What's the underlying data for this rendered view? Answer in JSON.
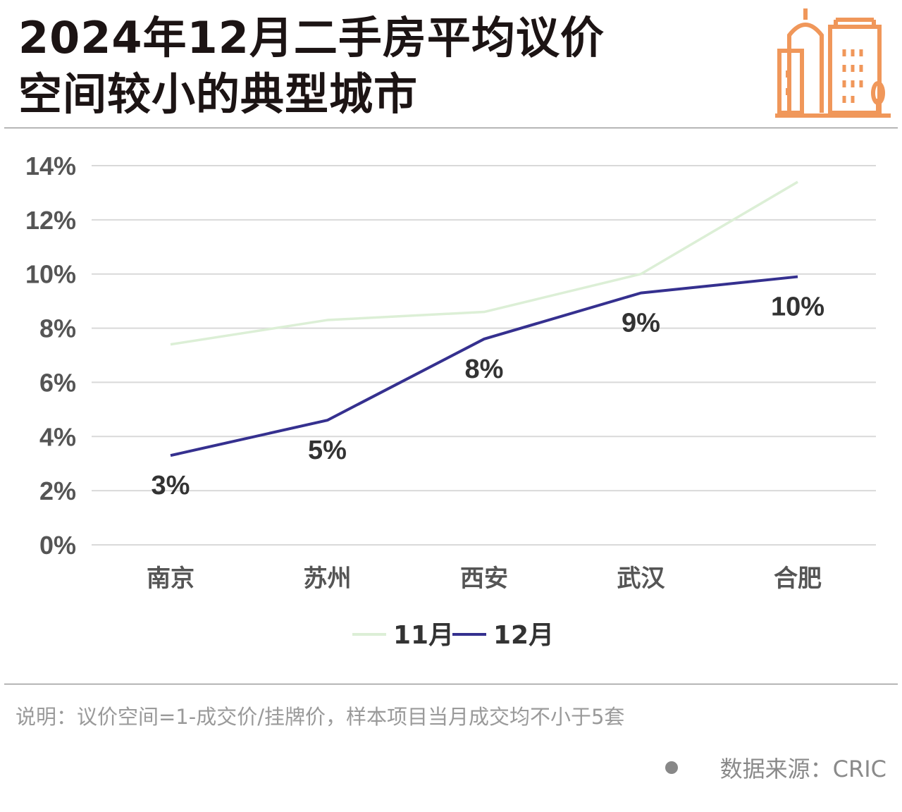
{
  "title_line1": "2024年12月二手房平均议价",
  "title_line2": "空间较小的典型城市",
  "note": "说明：议价空间=1-成交价/挂牌价，样本项目当月成交均不小于5套",
  "source": "数据来源：CRIC",
  "colors": {
    "nov": "#dcefd6",
    "dec": "#35308f",
    "logo": "#f0975a",
    "grid": "#d9d9d9"
  },
  "chart_data": {
    "type": "line",
    "title": "2024年12月二手房平均议价空间较小的典型城市",
    "categories": [
      "南京",
      "苏州",
      "西安",
      "武汉",
      "合肥"
    ],
    "ylim": [
      0,
      14
    ],
    "yticks": [
      0,
      2,
      4,
      6,
      8,
      10,
      12,
      14
    ],
    "ytick_labels": [
      "0%",
      "2%",
      "4%",
      "6%",
      "8%",
      "10%",
      "12%",
      "14%"
    ],
    "grid": true,
    "legend": "bottom-center",
    "series": [
      {
        "name": "11月",
        "values": [
          7.4,
          8.3,
          8.6,
          10.0,
          13.4
        ]
      },
      {
        "name": "12月",
        "values": [
          3.3,
          4.6,
          7.6,
          9.3,
          9.9
        ],
        "data_labels": [
          "3%",
          "5%",
          "8%",
          "9%",
          "10%"
        ]
      }
    ]
  }
}
